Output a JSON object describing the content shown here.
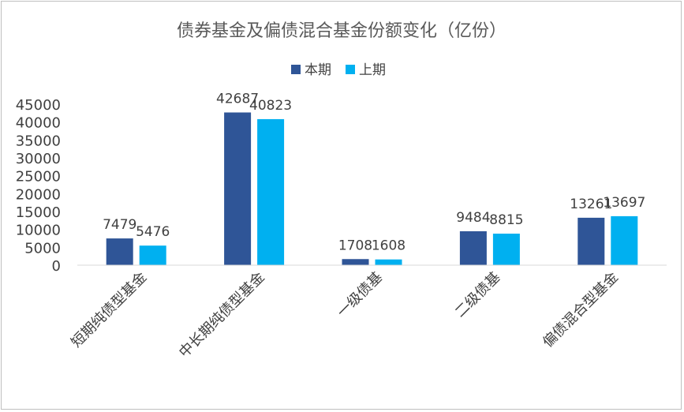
{
  "chart_data": {
    "type": "bar",
    "title": "债券基金及偏债混合基金份额变化（亿份）",
    "categories": [
      "短期纯债型基金",
      "中长期纯债型基金",
      "一级债基",
      "二级债基",
      "偏债混合型基金"
    ],
    "series": [
      {
        "name": "本期",
        "values": [
          7479,
          42687,
          1708,
          9484,
          13261
        ],
        "color": "#2f5597"
      },
      {
        "name": "上期",
        "values": [
          5476,
          40823,
          1608,
          8815,
          13697
        ],
        "color": "#00b0f0"
      }
    ],
    "y_ticks": [
      "0",
      "5000",
      "10000",
      "15000",
      "20000",
      "25000",
      "30000",
      "35000",
      "40000",
      "45000"
    ],
    "ylim": [
      0,
      45000
    ],
    "legend_position": "top",
    "grid": false
  }
}
